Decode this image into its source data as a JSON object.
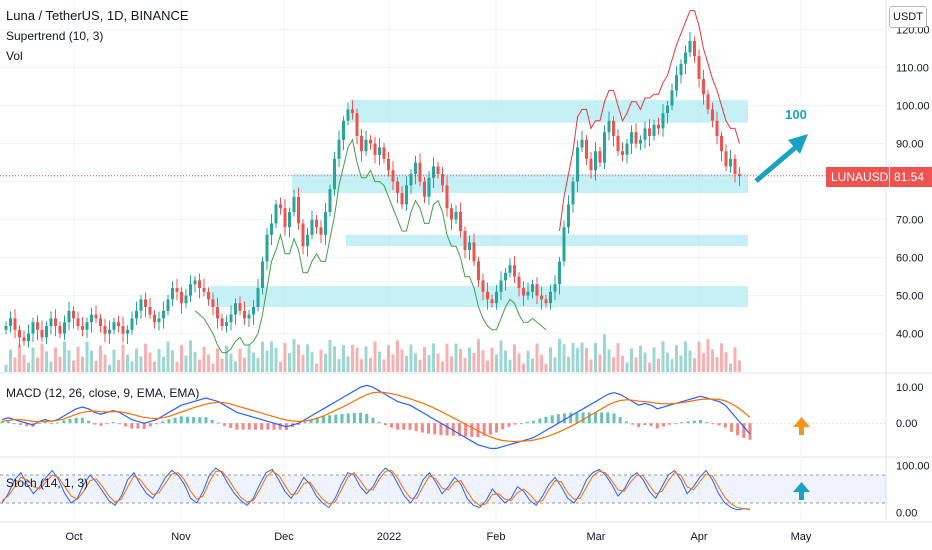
{
  "header": {
    "title": "Luna / TetherUS, 1D, BINANCE",
    "indicator1": "Supertrend (10, 3)",
    "indicator2": "Vol",
    "currency": "USDT"
  },
  "price_tag": {
    "symbol": "LUNAUSDT",
    "price": "81.54"
  },
  "annotation": {
    "target_text": "100"
  },
  "macd_label": "MACD (12, 26, close, 9, EMA, EMA)",
  "stoch_label": "Stoch (14, 1, 3)",
  "colors": {
    "up": "#26a69a",
    "down": "#ef5350",
    "zone": "#b2ebf2",
    "arrow_blue": "#17a2c2",
    "arrow_orange": "#f7931a",
    "macd": "#2962ff",
    "signal": "#ff6d00",
    "stoch_k": "#2962ff",
    "stoch_d": "#ff6d00"
  },
  "chart_data": [
    {
      "type": "candlestick",
      "title": "Luna / TetherUS, 1D, BINANCE",
      "x_ticks": [
        "Oct",
        "Nov",
        "Dec",
        "2022",
        "Feb",
        "Mar",
        "Apr",
        "May"
      ],
      "y_ticks": [
        "40.00",
        "50.00",
        "60.00",
        "70.00",
        "80.00",
        "90.00",
        "100.00",
        "110.00",
        "120.00"
      ],
      "ylim": [
        32,
        122
      ],
      "last_price": 81.54,
      "closes": [
        42,
        44,
        41,
        39,
        38,
        40,
        43,
        41,
        39,
        42,
        44,
        42,
        40,
        43,
        46,
        44,
        42,
        41,
        43,
        45,
        44,
        42,
        40,
        41,
        43,
        42,
        40,
        41,
        44,
        46,
        49,
        47,
        45,
        43,
        44,
        46,
        49,
        52,
        51,
        48,
        50,
        53,
        54,
        52,
        51,
        49,
        47,
        44,
        42,
        43,
        45,
        48,
        46,
        44,
        45,
        47,
        52,
        59,
        66,
        69,
        74,
        73,
        68,
        72,
        76,
        69,
        63,
        66,
        70,
        68,
        66,
        72,
        78,
        86,
        91,
        96,
        99,
        98,
        92,
        88,
        91,
        90,
        87,
        89,
        86,
        83,
        80,
        77,
        74,
        79,
        82,
        85,
        80,
        76,
        81,
        84,
        82,
        79,
        73,
        70,
        72,
        67,
        62,
        64,
        59,
        54,
        51,
        49,
        48,
        51,
        54,
        56,
        58,
        55,
        52,
        50,
        51,
        53,
        50,
        49,
        48,
        51,
        53,
        59,
        68,
        74,
        80,
        89,
        91,
        86,
        83,
        88,
        85,
        93,
        96,
        92,
        88,
        87,
        90,
        93,
        90,
        91,
        94,
        92,
        95,
        94,
        98,
        100,
        104,
        108,
        111,
        114,
        117,
        113,
        107,
        103,
        99,
        96,
        92,
        88,
        84,
        86,
        82,
        81.54
      ],
      "supertrend_up": {
        "start": 42,
        "end": 120
      },
      "supertrend_down": {
        "start": 123,
        "end": 164
      },
      "zones": [
        [
          95.5,
          101.5
        ],
        [
          77,
          82
        ],
        [
          63,
          66
        ],
        [
          47,
          52.5
        ]
      ],
      "target_label": "100"
    },
    {
      "type": "line",
      "title": "MACD (12, 26, close, 9, EMA, EMA)",
      "y_ticks": [
        "10.00",
        "0.00"
      ],
      "ylim": [
        -8,
        12
      ],
      "series": [
        {
          "name": "MACD",
          "values": [
            1,
            1.5,
            1,
            0.5,
            0,
            -0.5,
            0.5,
            1,
            0.5,
            1,
            2,
            3,
            4,
            4.5,
            4,
            3,
            2.5,
            3,
            3.5,
            3,
            2,
            1,
            0.5,
            0,
            0.5,
            1,
            2,
            3,
            4,
            5,
            5.5,
            6,
            6.5,
            7,
            6.5,
            6,
            5,
            4,
            3,
            2.5,
            2,
            1.5,
            1,
            0.5,
            0,
            -0.5,
            -1,
            -0.5,
            0,
            1,
            2,
            3,
            4,
            5,
            6,
            7,
            8,
            9,
            10,
            10.5,
            10,
            9,
            8,
            7,
            6,
            5.5,
            5,
            4,
            3,
            2,
            1,
            0,
            -1,
            -2,
            -3,
            -4,
            -5,
            -6,
            -6.5,
            -7,
            -7,
            -6.5,
            -6,
            -5.5,
            -5,
            -4.5,
            -4,
            -3,
            -2,
            -1,
            0,
            1,
            2,
            3,
            4,
            5,
            6,
            7,
            8,
            8.5,
            8,
            7,
            6,
            5,
            5.5,
            5,
            4,
            4.5,
            5,
            5.5,
            6,
            6.5,
            7,
            7.5,
            7,
            6.5,
            6,
            5,
            3,
            1,
            -1,
            -3
          ]
        },
        {
          "name": "Signal",
          "values": [
            0.5,
            0.8,
            1,
            1,
            0.8,
            0.5,
            0.4,
            0.5,
            0.6,
            0.8,
            1.2,
            1.8,
            2.5,
            3,
            3.3,
            3.4,
            3.2,
            3.1,
            3.2,
            3.2,
            2.9,
            2.5,
            2,
            1.6,
            1.4,
            1.3,
            1.5,
            1.9,
            2.5,
            3.1,
            3.7,
            4.3,
            4.8,
            5.3,
            5.6,
            5.8,
            5.7,
            5.3,
            4.8,
            4.3,
            3.8,
            3.3,
            2.8,
            2.3,
            1.8,
            1.3,
            0.9,
            0.6,
            0.5,
            0.6,
            0.9,
            1.4,
            2,
            2.8,
            3.6,
            4.4,
            5.3,
            6.2,
            7.1,
            7.9,
            8.5,
            8.6,
            8.5,
            8.2,
            7.8,
            7.3,
            6.8,
            6.2,
            5.6,
            4.9,
            4.1,
            3.3,
            2.4,
            1.5,
            0.6,
            -0.3,
            -1.2,
            -2.1,
            -3,
            -3.8,
            -4.4,
            -4.8,
            -5,
            -5.1,
            -5,
            -4.9,
            -4.7,
            -4.3,
            -3.8,
            -3.2,
            -2.5,
            -1.7,
            -0.9,
            0,
            1,
            2,
            3,
            4,
            5,
            5.8,
            6.3,
            6.5,
            6.4,
            6.1,
            6,
            5.8,
            5.5,
            5.4,
            5.4,
            5.5,
            5.7,
            6,
            6.3,
            6.6,
            6.7,
            6.7,
            6.6,
            6.2,
            5.4,
            4.4,
            3.1,
            1.6
          ]
        }
      ]
    },
    {
      "type": "line",
      "title": "Stoch (14, 1, 3)",
      "y_ticks": [
        "100.00",
        "0.00"
      ],
      "ylim": [
        -8,
        108
      ],
      "bands": [
        20,
        80
      ],
      "series": [
        {
          "name": "%K",
          "values": [
            20,
            40,
            70,
            85,
            60,
            40,
            55,
            75,
            90,
            70,
            40,
            20,
            30,
            60,
            80,
            65,
            45,
            25,
            15,
            35,
            70,
            85,
            60,
            40,
            30,
            50,
            75,
            90,
            80,
            60,
            30,
            20,
            45,
            80,
            95,
            85,
            60,
            40,
            25,
            15,
            30,
            60,
            85,
            92,
            70,
            45,
            30,
            50,
            75,
            60,
            35,
            20,
            10,
            30,
            60,
            85,
            80,
            55,
            40,
            55,
            80,
            95,
            85,
            60,
            35,
            20,
            40,
            70,
            85,
            65,
            40,
            55,
            75,
            60,
            30,
            15,
            10,
            25,
            50,
            35,
            20,
            30,
            55,
            45,
            25,
            15,
            35,
            60,
            75,
            55,
            30,
            20,
            40,
            70,
            85,
            92,
            80,
            60,
            35,
            50,
            75,
            85,
            70,
            45,
            30,
            55,
            80,
            90,
            70,
            40,
            55,
            75,
            90,
            70,
            40,
            20,
            10,
            5,
            8,
            6
          ]
        },
        {
          "name": "%D",
          "values": [
            25,
            35,
            55,
            75,
            70,
            55,
            50,
            65,
            80,
            75,
            55,
            35,
            28,
            45,
            68,
            72,
            55,
            35,
            22,
            28,
            55,
            78,
            70,
            52,
            38,
            42,
            62,
            82,
            85,
            70,
            45,
            28,
            35,
            65,
            88,
            88,
            72,
            50,
            32,
            22,
            25,
            48,
            75,
            88,
            80,
            58,
            38,
            40,
            62,
            65,
            45,
            28,
            18,
            22,
            48,
            75,
            85,
            68,
            48,
            48,
            70,
            88,
            90,
            72,
            48,
            30,
            30,
            55,
            78,
            72,
            52,
            48,
            65,
            68,
            45,
            25,
            15,
            18,
            38,
            40,
            28,
            25,
            42,
            50,
            38,
            22,
            25,
            48,
            68,
            65,
            42,
            28,
            30,
            55,
            78,
            88,
            85,
            68,
            48,
            45,
            65,
            80,
            78,
            58,
            40,
            45,
            68,
            85,
            80,
            55,
            48,
            65,
            82,
            78,
            55,
            32,
            18,
            10,
            8,
            7
          ]
        }
      ]
    }
  ]
}
